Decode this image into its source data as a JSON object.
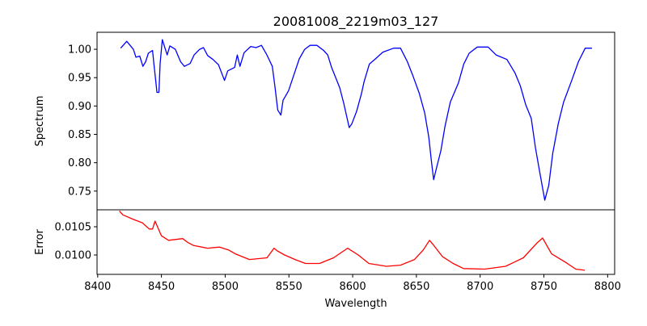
{
  "chart_data": [
    {
      "type": "line",
      "title": "20081008_2219m03_127",
      "xlabel": "",
      "ylabel": "Spectrum",
      "xlim": [
        8399.5,
        8805.5
      ],
      "ylim": [
        0.717,
        1.03
      ],
      "yticks": [
        0.75,
        0.8,
        0.85,
        0.9,
        0.95,
        1.0
      ],
      "ytick_labels": [
        "0.75",
        "0.80",
        "0.85",
        "0.90",
        "0.95",
        "1.00"
      ],
      "grid": false,
      "series": [
        {
          "name": "Spectrum",
          "color": "#0000ff",
          "x": [
            8418,
            8422.8,
            8428,
            8430,
            8433,
            8435.5,
            8437.6,
            8439.7,
            8443,
            8444,
            8446.5,
            8448,
            8449,
            8450.7,
            8454.5,
            8456.6,
            8460.9,
            8465,
            8468,
            8472.5,
            8475.6,
            8480,
            8483,
            8486.2,
            8490.4,
            8494.7,
            8499.5,
            8502,
            8507.4,
            8509.5,
            8511.6,
            8514.8,
            8520,
            8524.3,
            8528.5,
            8532.7,
            8537,
            8539,
            8541.2,
            8543.7,
            8545.4,
            8549.7,
            8553.9,
            8558.1,
            8562.4,
            8566.6,
            8571.9,
            8577.2,
            8580.4,
            8583.5,
            8586.7,
            8589.9,
            8593,
            8597.3,
            8599.4,
            8603,
            8606.8,
            8609,
            8613.1,
            8617.3,
            8623.7,
            8632.2,
            8637.5,
            8642.7,
            8647,
            8652.3,
            8656.5,
            8659.7,
            8661.8,
            8663.5,
            8666,
            8669.2,
            8672.4,
            8676.6,
            8683,
            8687.1,
            8691.4,
            8697.7,
            8706.2,
            8712.5,
            8721,
            8727.4,
            8731.6,
            8735.8,
            8740.1,
            8743.3,
            8746.4,
            8750.7,
            8753.8,
            8757,
            8761.3,
            8765.5,
            8771.8,
            8777.1,
            8782.4,
            8787.7
          ],
          "y": [
            1.002,
            1.014,
            1.0,
            0.986,
            0.988,
            0.97,
            0.978,
            0.993,
            0.998,
            0.977,
            0.924,
            0.924,
            0.975,
            1.017,
            0.99,
            1.006,
            1.0,
            0.978,
            0.97,
            0.975,
            0.99,
            1.0,
            1.003,
            0.989,
            0.982,
            0.973,
            0.945,
            0.962,
            0.968,
            0.99,
            0.97,
            0.994,
            1.005,
            1.003,
            1.007,
            0.99,
            0.97,
            0.935,
            0.893,
            0.884,
            0.91,
            0.927,
            0.955,
            0.983,
            1.0,
            1.007,
            1.007,
            0.998,
            0.99,
            0.968,
            0.95,
            0.932,
            0.905,
            0.862,
            0.869,
            0.89,
            0.921,
            0.943,
            0.974,
            0.982,
            0.995,
            1.002,
            1.002,
            0.979,
            0.955,
            0.922,
            0.888,
            0.845,
            0.802,
            0.77,
            0.793,
            0.821,
            0.864,
            0.907,
            0.941,
            0.974,
            0.993,
            1.004,
            1.004,
            0.99,
            0.982,
            0.958,
            0.935,
            0.902,
            0.878,
            0.827,
            0.788,
            0.734,
            0.76,
            0.817,
            0.869,
            0.907,
            0.945,
            0.978,
            1.002,
            1.002
          ]
        }
      ]
    },
    {
      "type": "line",
      "title": "",
      "xlabel": "Wavelength",
      "ylabel": "Error",
      "xlim": [
        8399.5,
        8805.5
      ],
      "ylim": [
        0.009657,
        0.0108
      ],
      "xticks": [
        8400,
        8450,
        8500,
        8550,
        8600,
        8650,
        8700,
        8750,
        8800
      ],
      "xtick_labels": [
        "8400",
        "8450",
        "8500",
        "8550",
        "8600",
        "8650",
        "8700",
        "8750",
        "8800"
      ],
      "yticks": [
        0.01,
        0.0105
      ],
      "ytick_labels": [
        "0.0100",
        "0.0105"
      ],
      "grid": false,
      "series": [
        {
          "name": "Error",
          "color": "#ff0000",
          "x": [
            8417,
            8419.8,
            8428,
            8435,
            8440.5,
            8443,
            8445,
            8450,
            8455.6,
            8466.7,
            8470.8,
            8475,
            8486,
            8495.6,
            8502.5,
            8508,
            8519,
            8532.8,
            8538.3,
            8541,
            8546.6,
            8554.8,
            8563,
            8574,
            8585,
            8596,
            8604.4,
            8612.7,
            8626.4,
            8637.5,
            8648.5,
            8655.4,
            8660.3,
            8663.6,
            8670.5,
            8678.8,
            8687,
            8703.6,
            8720,
            8733.9,
            8744.9,
            8749,
            8756,
            8767,
            8775,
            8782
          ],
          "y": [
            0.01078,
            0.01071,
            0.01063,
            0.01057,
            0.01046,
            0.01046,
            0.0106,
            0.01034,
            0.01026,
            0.01029,
            0.01022,
            0.01017,
            0.01012,
            0.01014,
            0.01009,
            0.01002,
            0.00992,
            0.00995,
            0.01012,
            0.01007,
            0.01,
            0.00992,
            0.00985,
            0.00985,
            0.00995,
            0.01012,
            0.01,
            0.00985,
            0.0098,
            0.00982,
            0.00992,
            0.01009,
            0.01026,
            0.01017,
            0.00997,
            0.00985,
            0.00976,
            0.00975,
            0.0098,
            0.00995,
            0.01022,
            0.0103,
            0.01002,
            0.00987,
            0.00975,
            0.00973
          ]
        }
      ]
    }
  ]
}
